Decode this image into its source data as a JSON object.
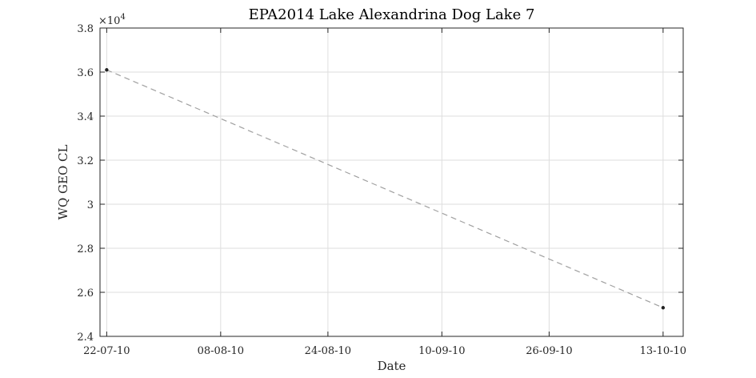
{
  "chart_data": {
    "type": "line",
    "title": "EPA2014 Lake Alexandrina Dog Lake 7",
    "xlabel": "Date",
    "ylabel": "WQ GEO CL",
    "y_exponent_label": "×10",
    "y_exponent_power": "4",
    "x_tick_labels": [
      "22-07-10",
      "08-08-10",
      "24-08-10",
      "10-09-10",
      "26-09-10",
      "13-10-10"
    ],
    "x_ticks": [
      "2010-07-22",
      "2010-08-08",
      "2010-08-24",
      "2010-09-10",
      "2010-09-26",
      "2010-10-13"
    ],
    "xlim": [
      "2010-07-21",
      "2010-10-16"
    ],
    "y_tick_labels": [
      "2.4",
      "2.6",
      "2.8",
      "3",
      "3.2",
      "3.4",
      "3.6",
      "3.8"
    ],
    "y_ticks": [
      24000,
      26000,
      28000,
      30000,
      32000,
      34000,
      36000,
      38000
    ],
    "ylim": [
      24000,
      38000
    ],
    "grid": true,
    "series": [
      {
        "x": [
          "2010-07-22",
          "2010-10-13"
        ],
        "y": [
          36100,
          25300
        ],
        "line_style": "dashed",
        "line_color": "#a0a0a0",
        "marker_color": "#222222"
      }
    ]
  }
}
